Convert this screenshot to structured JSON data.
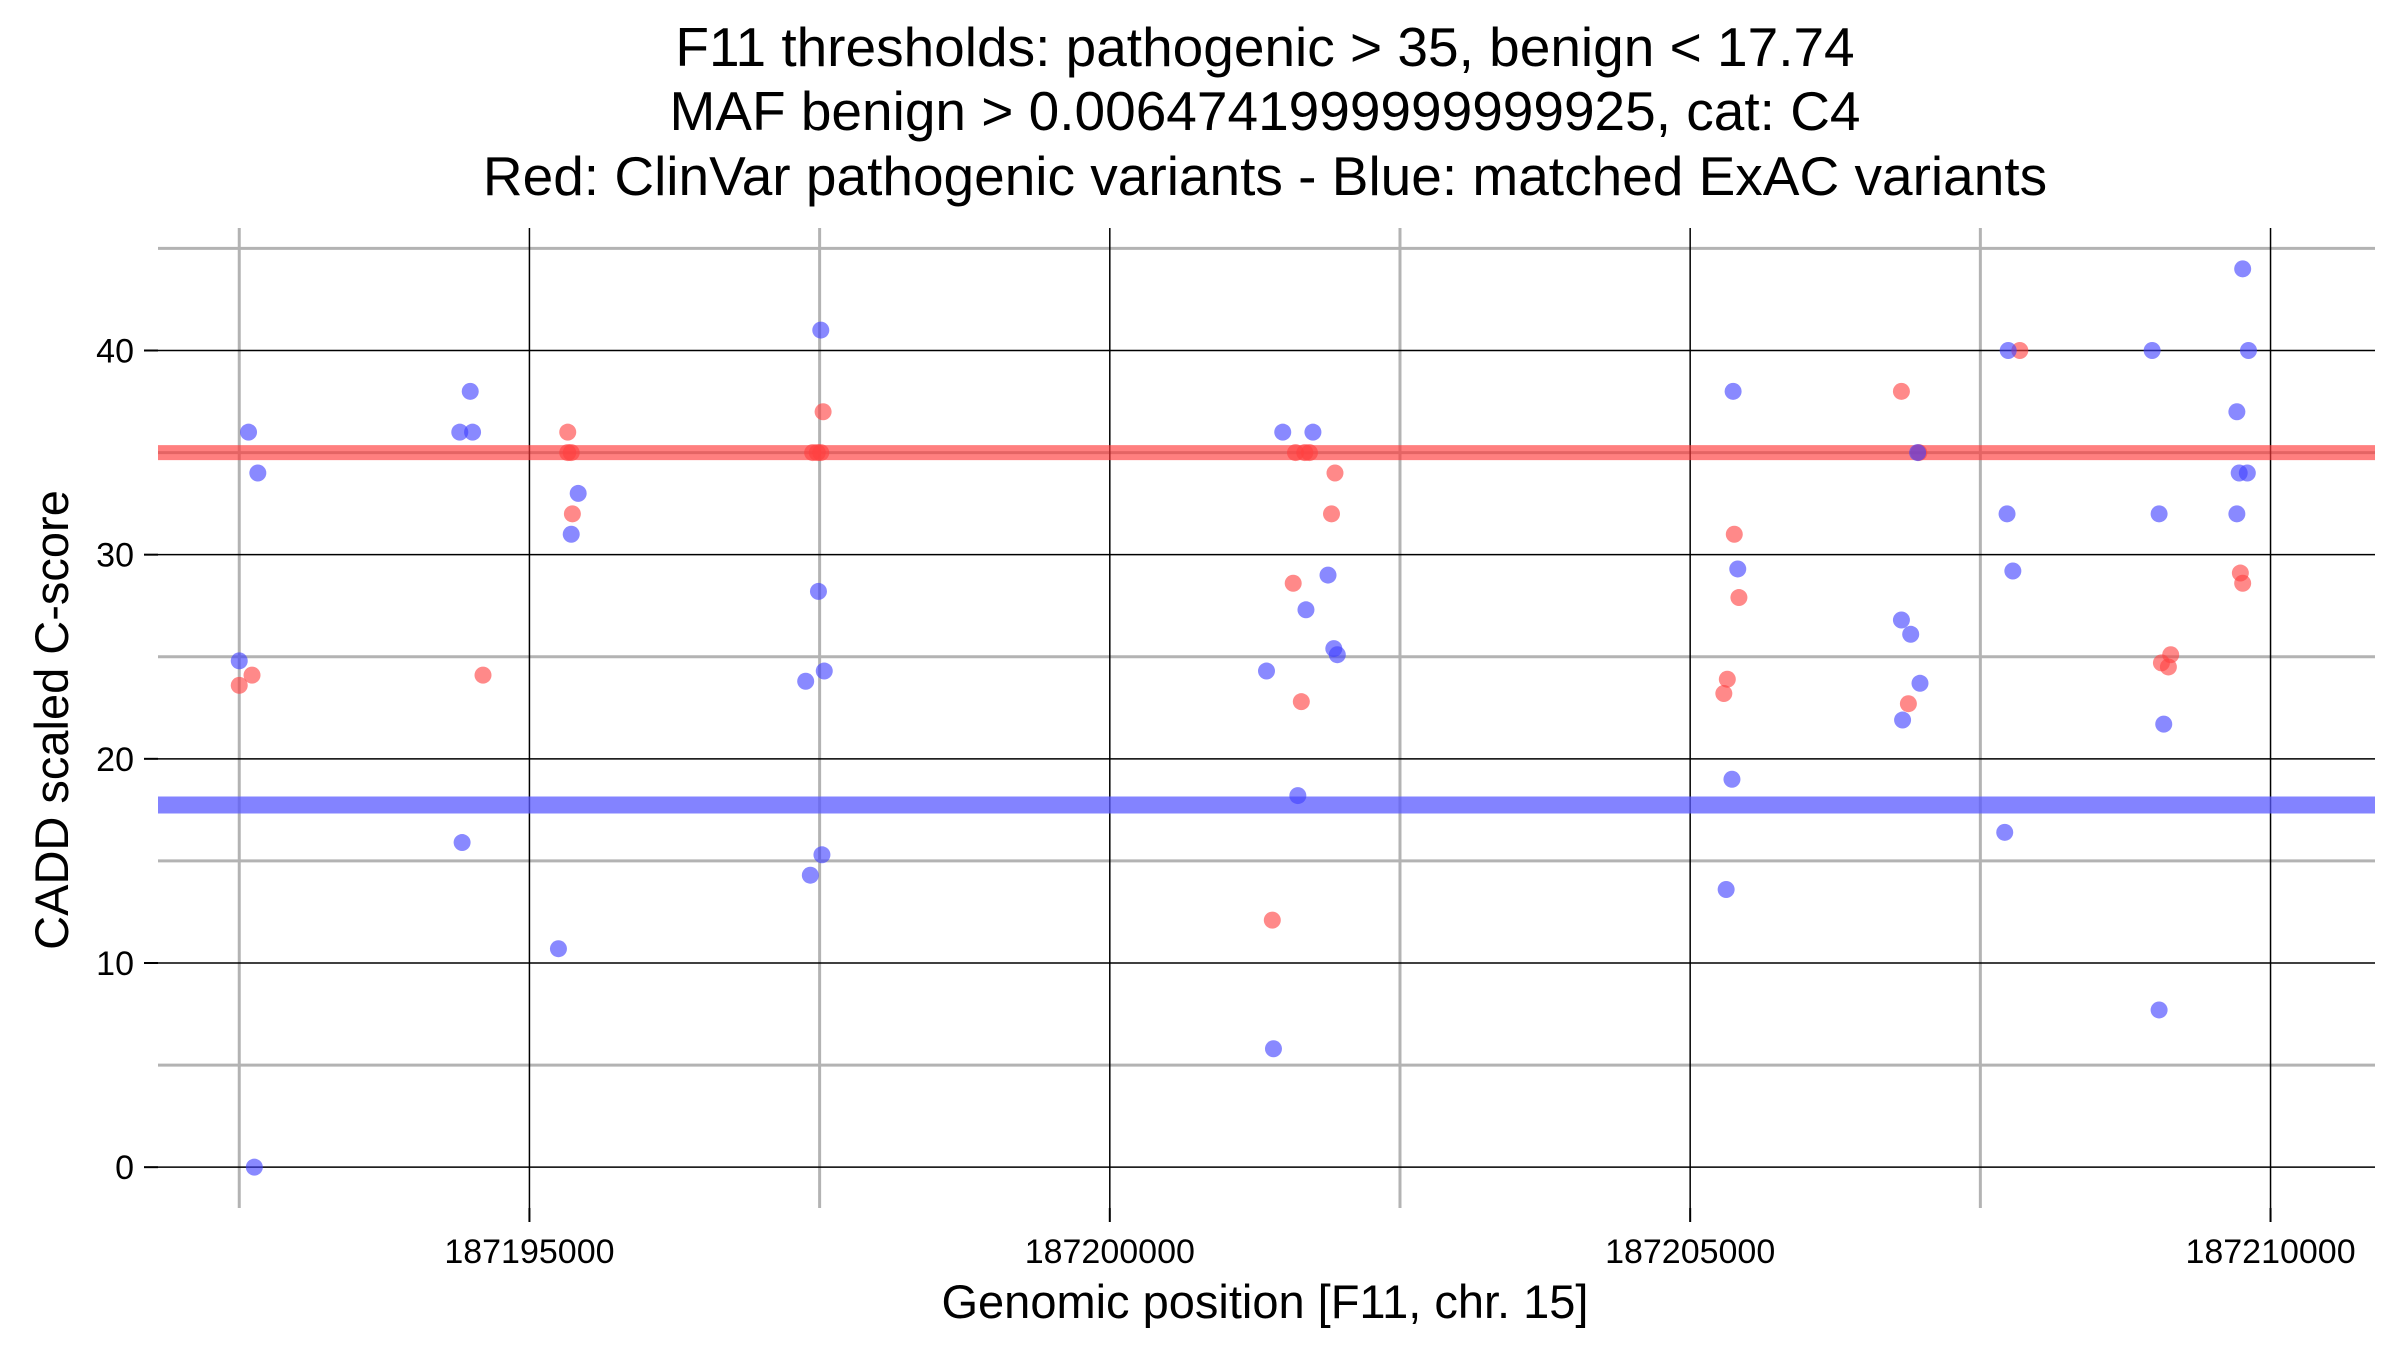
{
  "chart_data": {
    "type": "scatter",
    "title_lines": [
      "F11 thresholds: pathogenic > 35, benign < 17.74",
      "MAF benign > 0.0064741999999999925, cat: C4",
      "Red: ClinVar pathogenic variants - Blue: matched ExAC variants"
    ],
    "xlabel": "Genomic position [F11, chr. 15]",
    "ylabel": "CADD scaled C-score",
    "xlim": [
      187191800,
      187210900
    ],
    "ylim": [
      -2,
      46
    ],
    "x_ticks": [
      187195000,
      187200000,
      187205000,
      187210000
    ],
    "x_tick_labels": [
      "187195000",
      "187200000",
      "187205000",
      "187210000"
    ],
    "y_ticks": [
      0,
      10,
      20,
      30,
      40
    ],
    "y_tick_labels": [
      "0",
      "10",
      "20",
      "30",
      "40"
    ],
    "thresholds": {
      "pathogenic": 35,
      "benign": 17.74,
      "pathogenic_color": "#ff3b3b",
      "benign_color": "#5a5aff"
    },
    "series": [
      {
        "name": "ClinVar pathogenic",
        "color": "#ff4040",
        "points": [
          [
            187192500,
            23.6
          ],
          [
            187192610,
            24.1
          ],
          [
            187194600,
            24.1
          ],
          [
            187195330,
            36
          ],
          [
            187195330,
            35
          ],
          [
            187195360,
            35
          ],
          [
            187195370,
            32
          ],
          [
            187197440,
            35
          ],
          [
            187197480,
            35
          ],
          [
            187197510,
            35
          ],
          [
            187197530,
            37
          ],
          [
            187201400,
            12.1
          ],
          [
            187201580,
            28.6
          ],
          [
            187201600,
            35
          ],
          [
            187201650,
            22.8
          ],
          [
            187201680,
            35
          ],
          [
            187201720,
            35
          ],
          [
            187201910,
            32
          ],
          [
            187201940,
            34
          ],
          [
            187205290,
            23.2
          ],
          [
            187205320,
            23.9
          ],
          [
            187205380,
            31
          ],
          [
            187205420,
            27.9
          ],
          [
            187206820,
            38
          ],
          [
            187206880,
            22.7
          ],
          [
            187206970,
            35
          ],
          [
            187207840,
            40
          ],
          [
            187209060,
            24.7
          ],
          [
            187209120,
            24.5
          ],
          [
            187209140,
            25.1
          ],
          [
            187209740,
            29.1
          ],
          [
            187209760,
            28.6
          ]
        ]
      },
      {
        "name": "matched ExAC",
        "color": "#4040ff",
        "points": [
          [
            187192500,
            24.8
          ],
          [
            187192580,
            36
          ],
          [
            187192630,
            0
          ],
          [
            187192660,
            34
          ],
          [
            187194400,
            36
          ],
          [
            187194420,
            15.9
          ],
          [
            187194490,
            38
          ],
          [
            187194510,
            36
          ],
          [
            187195250,
            10.7
          ],
          [
            187195360,
            31
          ],
          [
            187195420,
            33
          ],
          [
            187197380,
            23.8
          ],
          [
            187197420,
            14.3
          ],
          [
            187197490,
            28.2
          ],
          [
            187197510,
            41
          ],
          [
            187197520,
            15.3
          ],
          [
            187197540,
            24.3
          ],
          [
            187201350,
            24.3
          ],
          [
            187201410,
            5.8
          ],
          [
            187201490,
            36
          ],
          [
            187201620,
            18.2
          ],
          [
            187201690,
            27.3
          ],
          [
            187201750,
            36
          ],
          [
            187201880,
            29
          ],
          [
            187201930,
            25.4
          ],
          [
            187201960,
            25.1
          ],
          [
            187205310,
            13.6
          ],
          [
            187205360,
            19
          ],
          [
            187205370,
            38
          ],
          [
            187205410,
            29.3
          ],
          [
            187206820,
            26.8
          ],
          [
            187206830,
            21.9
          ],
          [
            187206900,
            26.1
          ],
          [
            187206960,
            35
          ],
          [
            187206980,
            23.7
          ],
          [
            187207710,
            16.4
          ],
          [
            187207730,
            32
          ],
          [
            187207740,
            40
          ],
          [
            187207780,
            29.2
          ],
          [
            187208980,
            40
          ],
          [
            187209040,
            32
          ],
          [
            187209040,
            7.7
          ],
          [
            187209080,
            21.7
          ],
          [
            187209710,
            37
          ],
          [
            187209710,
            32
          ],
          [
            187209730,
            34
          ],
          [
            187209760,
            44
          ],
          [
            187209800,
            34
          ],
          [
            187209810,
            40
          ]
        ]
      }
    ]
  }
}
